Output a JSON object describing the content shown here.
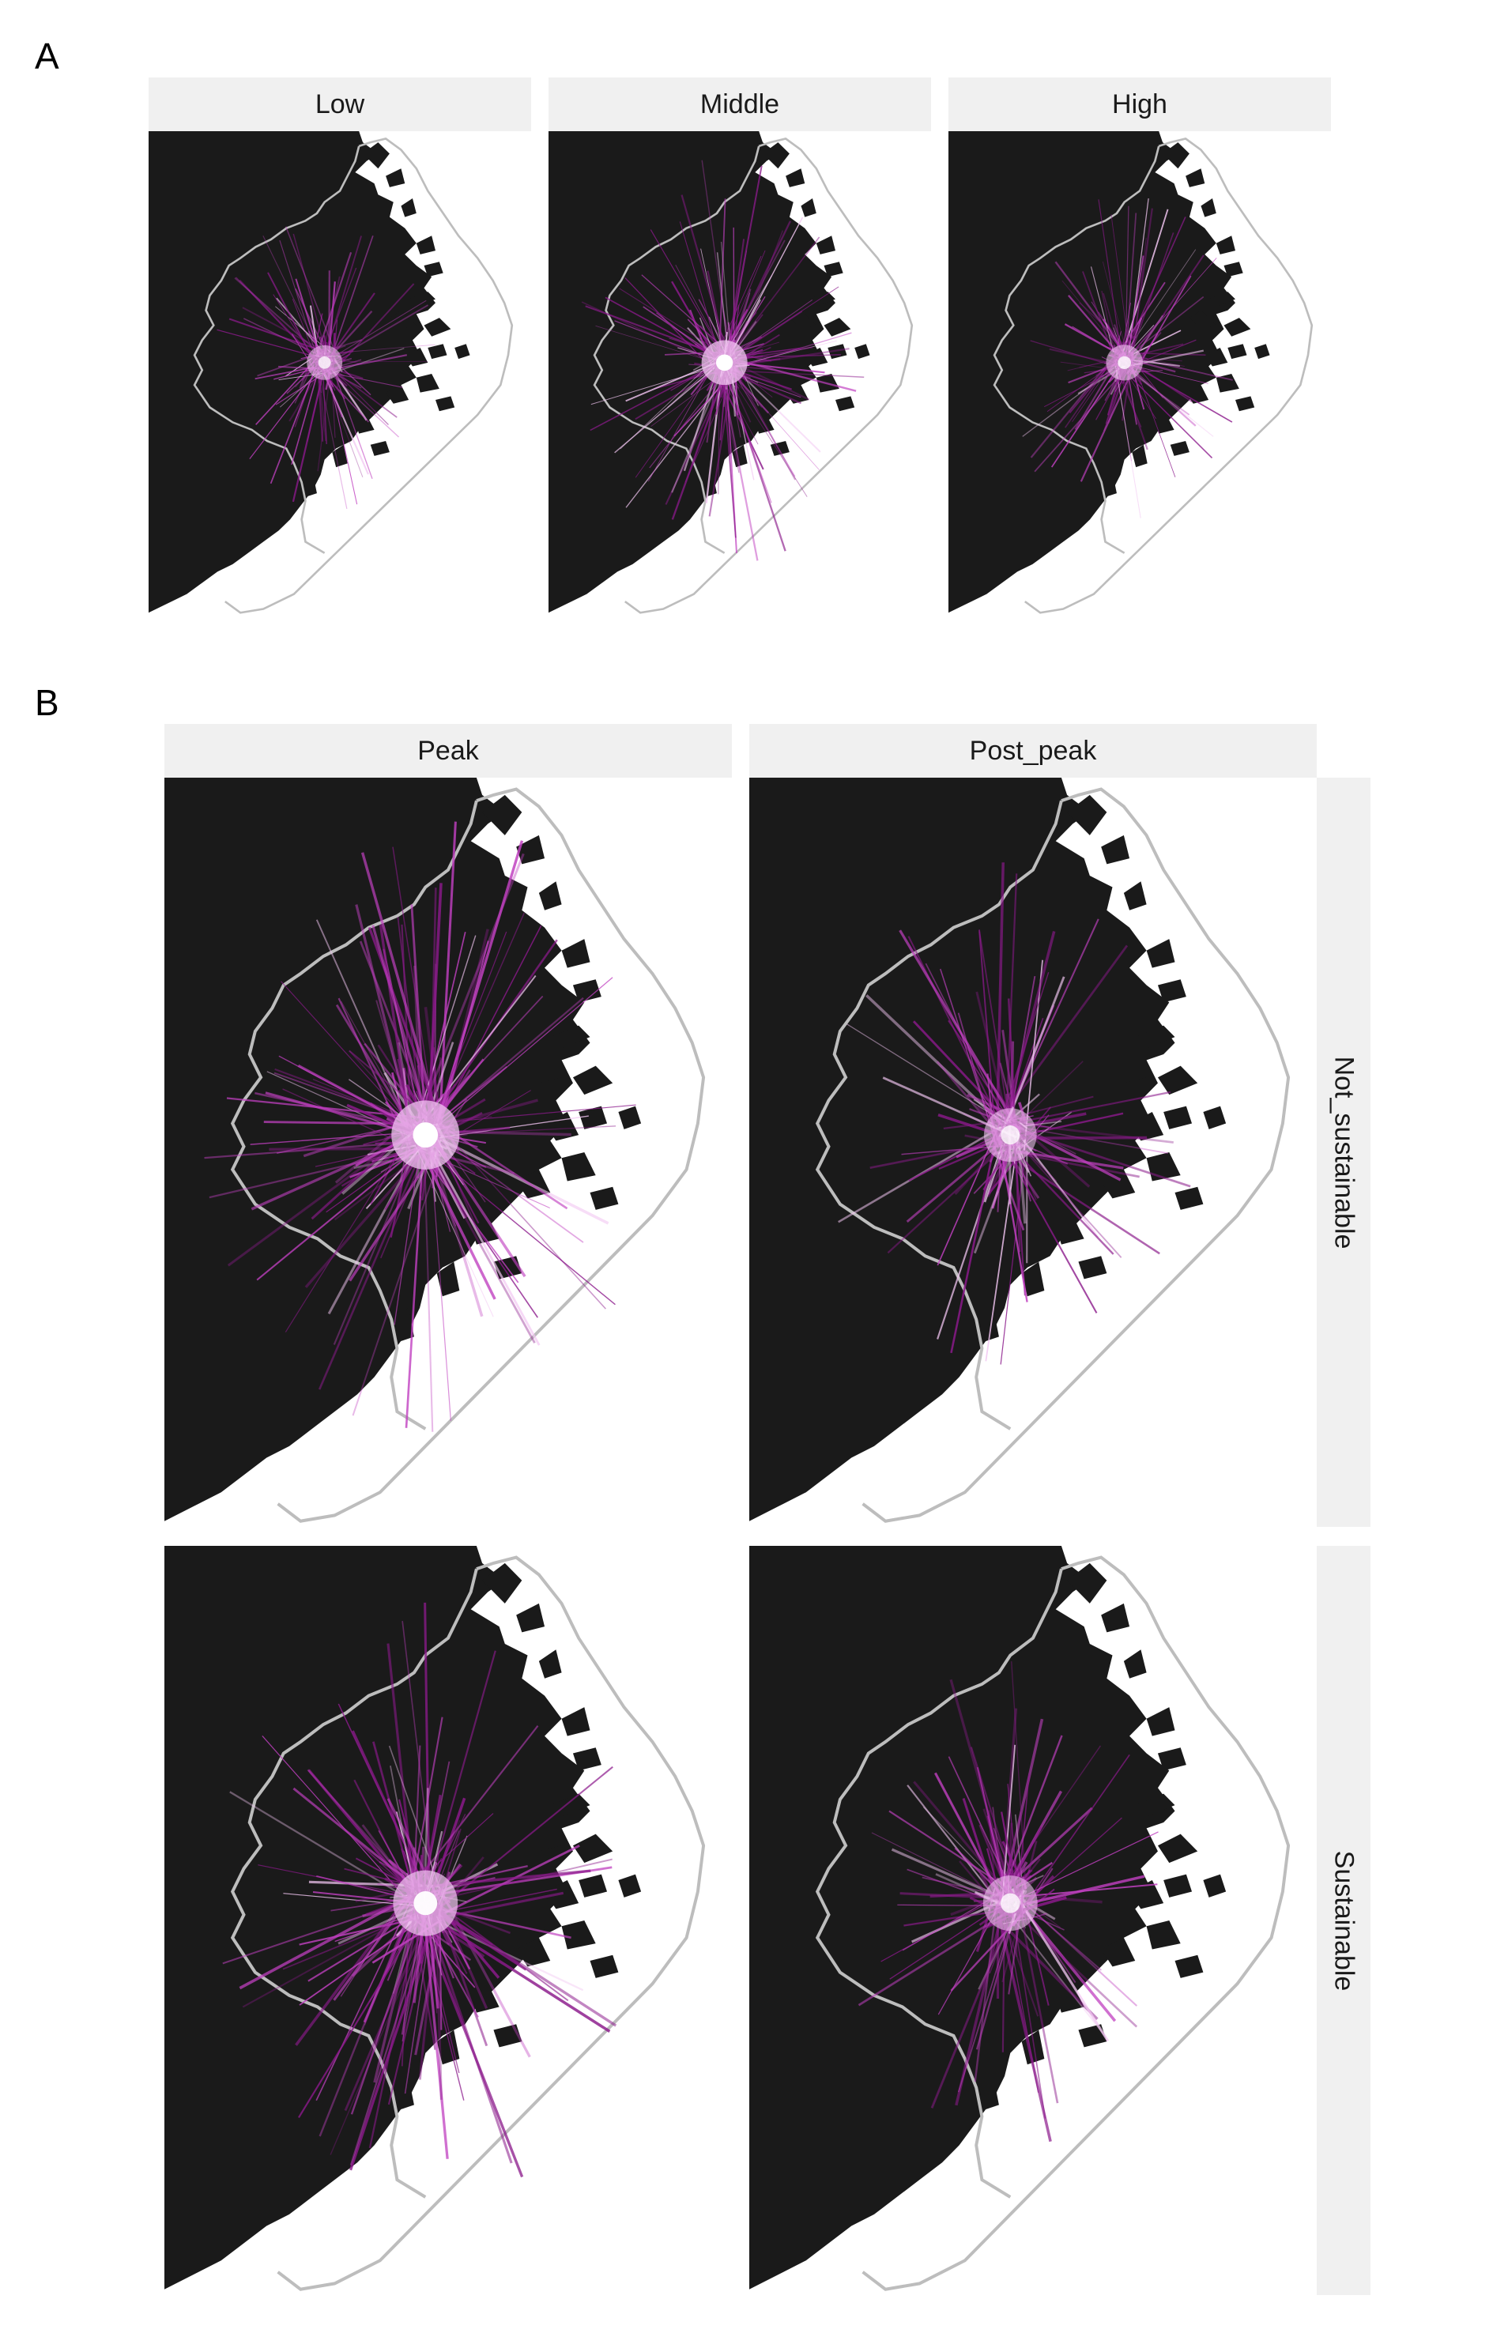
{
  "figure": {
    "panel_a": {
      "label": "A",
      "facets": [
        {
          "label": "Low",
          "intensity": 0.55,
          "spread": 0.75
        },
        {
          "label": "Middle",
          "intensity": 1.0,
          "spread": 1.0
        },
        {
          "label": "High",
          "intensity": 0.6,
          "spread": 0.8
        }
      ]
    },
    "panel_b": {
      "label": "B",
      "columns": [
        "Peak",
        "Post_peak"
      ],
      "rows": [
        "Not_sustainable",
        "Sustainable"
      ],
      "cells": [
        {
          "row": "Not_sustainable",
          "column": "Peak",
          "intensity": 1.0,
          "spread": 1.0
        },
        {
          "row": "Not_sustainable",
          "column": "Post_peak",
          "intensity": 0.55,
          "spread": 0.85
        },
        {
          "row": "Sustainable",
          "column": "Peak",
          "intensity": 0.9,
          "spread": 0.95
        },
        {
          "row": "Sustainable",
          "column": "Post_peak",
          "intensity": 0.6,
          "spread": 0.75
        }
      ]
    },
    "colors": {
      "land": "#1a1a1a",
      "water": "#ffffff",
      "boundary": "#bdbdbd",
      "flow_dark": "#8b1a8b",
      "flow_mid": "#c040c0",
      "flow_light": "#f2c6f2",
      "strip_bg": "#f0f0f0"
    }
  }
}
